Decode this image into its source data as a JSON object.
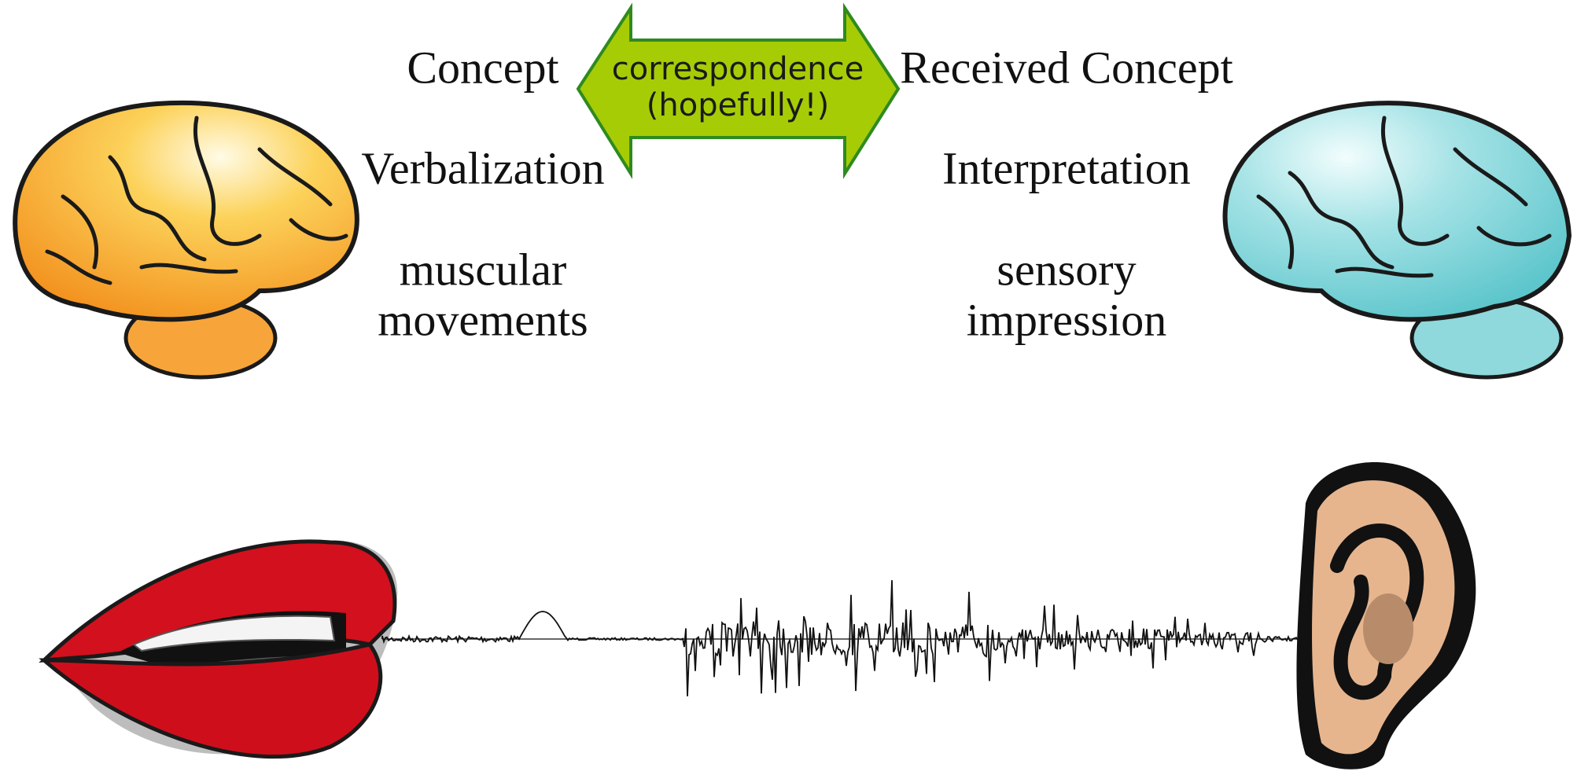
{
  "speaker": {
    "concept": "Concept",
    "verbalization": "Verbalization",
    "articulation": [
      "muscular",
      "movements"
    ]
  },
  "link": [
    "correspondence",
    "(hopefully!)"
  ],
  "listener": {
    "concept": "Received Concept",
    "interpretation": "Interpretation",
    "perception": [
      "sensory",
      "impression"
    ]
  }
}
